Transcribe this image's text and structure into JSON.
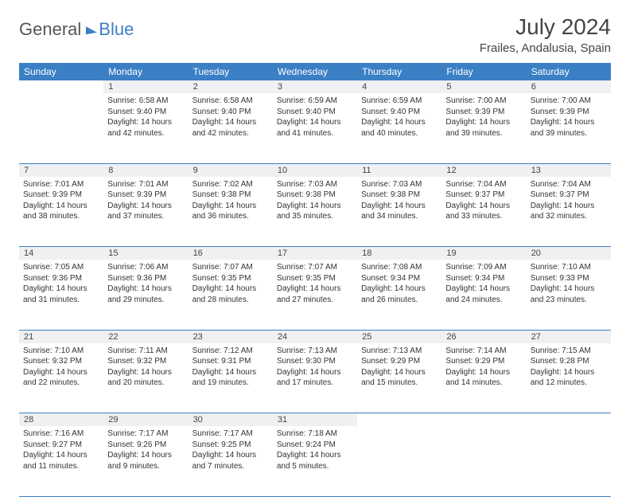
{
  "brand": {
    "part1": "General",
    "part2": "Blue"
  },
  "title": "July 2024",
  "location": "Frailes, Andalusia, Spain",
  "colors": {
    "accent": "#3b7fc4",
    "rowbg": "#eef0f2",
    "text": "#333333"
  },
  "weekdays": [
    "Sunday",
    "Monday",
    "Tuesday",
    "Wednesday",
    "Thursday",
    "Friday",
    "Saturday"
  ],
  "days": {
    "1": {
      "sunrise": "6:58 AM",
      "sunset": "9:40 PM",
      "daylight": "14 hours and 42 minutes."
    },
    "2": {
      "sunrise": "6:58 AM",
      "sunset": "9:40 PM",
      "daylight": "14 hours and 42 minutes."
    },
    "3": {
      "sunrise": "6:59 AM",
      "sunset": "9:40 PM",
      "daylight": "14 hours and 41 minutes."
    },
    "4": {
      "sunrise": "6:59 AM",
      "sunset": "9:40 PM",
      "daylight": "14 hours and 40 minutes."
    },
    "5": {
      "sunrise": "7:00 AM",
      "sunset": "9:39 PM",
      "daylight": "14 hours and 39 minutes."
    },
    "6": {
      "sunrise": "7:00 AM",
      "sunset": "9:39 PM",
      "daylight": "14 hours and 39 minutes."
    },
    "7": {
      "sunrise": "7:01 AM",
      "sunset": "9:39 PM",
      "daylight": "14 hours and 38 minutes."
    },
    "8": {
      "sunrise": "7:01 AM",
      "sunset": "9:39 PM",
      "daylight": "14 hours and 37 minutes."
    },
    "9": {
      "sunrise": "7:02 AM",
      "sunset": "9:38 PM",
      "daylight": "14 hours and 36 minutes."
    },
    "10": {
      "sunrise": "7:03 AM",
      "sunset": "9:38 PM",
      "daylight": "14 hours and 35 minutes."
    },
    "11": {
      "sunrise": "7:03 AM",
      "sunset": "9:38 PM",
      "daylight": "14 hours and 34 minutes."
    },
    "12": {
      "sunrise": "7:04 AM",
      "sunset": "9:37 PM",
      "daylight": "14 hours and 33 minutes."
    },
    "13": {
      "sunrise": "7:04 AM",
      "sunset": "9:37 PM",
      "daylight": "14 hours and 32 minutes."
    },
    "14": {
      "sunrise": "7:05 AM",
      "sunset": "9:36 PM",
      "daylight": "14 hours and 31 minutes."
    },
    "15": {
      "sunrise": "7:06 AM",
      "sunset": "9:36 PM",
      "daylight": "14 hours and 29 minutes."
    },
    "16": {
      "sunrise": "7:07 AM",
      "sunset": "9:35 PM",
      "daylight": "14 hours and 28 minutes."
    },
    "17": {
      "sunrise": "7:07 AM",
      "sunset": "9:35 PM",
      "daylight": "14 hours and 27 minutes."
    },
    "18": {
      "sunrise": "7:08 AM",
      "sunset": "9:34 PM",
      "daylight": "14 hours and 26 minutes."
    },
    "19": {
      "sunrise": "7:09 AM",
      "sunset": "9:34 PM",
      "daylight": "14 hours and 24 minutes."
    },
    "20": {
      "sunrise": "7:10 AM",
      "sunset": "9:33 PM",
      "daylight": "14 hours and 23 minutes."
    },
    "21": {
      "sunrise": "7:10 AM",
      "sunset": "9:32 PM",
      "daylight": "14 hours and 22 minutes."
    },
    "22": {
      "sunrise": "7:11 AM",
      "sunset": "9:32 PM",
      "daylight": "14 hours and 20 minutes."
    },
    "23": {
      "sunrise": "7:12 AM",
      "sunset": "9:31 PM",
      "daylight": "14 hours and 19 minutes."
    },
    "24": {
      "sunrise": "7:13 AM",
      "sunset": "9:30 PM",
      "daylight": "14 hours and 17 minutes."
    },
    "25": {
      "sunrise": "7:13 AM",
      "sunset": "9:29 PM",
      "daylight": "14 hours and 15 minutes."
    },
    "26": {
      "sunrise": "7:14 AM",
      "sunset": "9:29 PM",
      "daylight": "14 hours and 14 minutes."
    },
    "27": {
      "sunrise": "7:15 AM",
      "sunset": "9:28 PM",
      "daylight": "14 hours and 12 minutes."
    },
    "28": {
      "sunrise": "7:16 AM",
      "sunset": "9:27 PM",
      "daylight": "14 hours and 11 minutes."
    },
    "29": {
      "sunrise": "7:17 AM",
      "sunset": "9:26 PM",
      "daylight": "14 hours and 9 minutes."
    },
    "30": {
      "sunrise": "7:17 AM",
      "sunset": "9:25 PM",
      "daylight": "14 hours and 7 minutes."
    },
    "31": {
      "sunrise": "7:18 AM",
      "sunset": "9:24 PM",
      "daylight": "14 hours and 5 minutes."
    }
  },
  "grid": [
    [
      null,
      1,
      2,
      3,
      4,
      5,
      6
    ],
    [
      7,
      8,
      9,
      10,
      11,
      12,
      13
    ],
    [
      14,
      15,
      16,
      17,
      18,
      19,
      20
    ],
    [
      21,
      22,
      23,
      24,
      25,
      26,
      27
    ],
    [
      28,
      29,
      30,
      31,
      null,
      null,
      null
    ]
  ],
  "labels": {
    "sunrise": "Sunrise: ",
    "sunset": "Sunset: ",
    "daylight": "Daylight: "
  }
}
